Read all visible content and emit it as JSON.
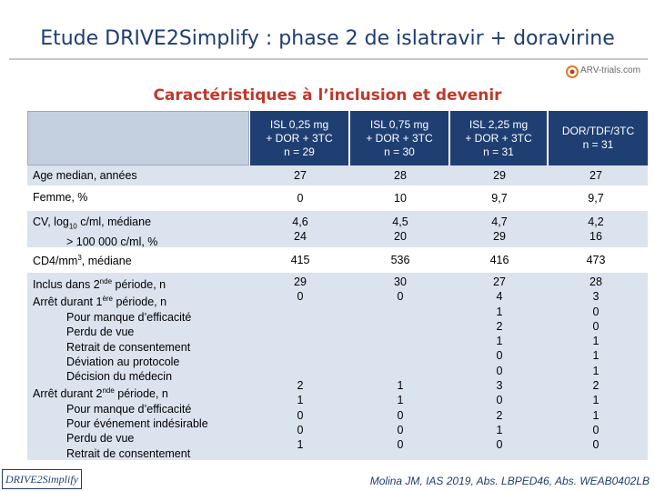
{
  "title": "Etude DRIVE2Simplify : phase 2 de islatravir + doravirine",
  "logo_text": "ARV-trials.com",
  "subtitle": "Caractéristiques à l’inclusion et devenir",
  "columns": [
    "ISL 0,25 mg\n+ DOR + 3TC\nn = 29",
    "ISL 0,75 mg\n+ DOR + 3TC\nn = 30",
    "ISL 2,25 mg\n+ DOR + 3TC\nn = 31",
    "DOR/TDF/3TC\nn = 31"
  ],
  "rows": {
    "age": {
      "label": "Age median, années",
      "values": [
        "27",
        "28",
        "29",
        "27"
      ]
    },
    "femme": {
      "label": "Femme, %",
      "values": [
        "0",
        "10",
        "9,7",
        "9,7"
      ]
    },
    "cv": {
      "label_a": "CV, log",
      "label_sub": "10",
      "label_b": " c/ml, médiane",
      "label_line2": "> 100 000 c/ml, %",
      "values": [
        "4,6\n24",
        "4,5\n20",
        "4,7\n29",
        "4,2\n16"
      ]
    },
    "cd4": {
      "label_a": "CD4/mm",
      "label_sup": "3",
      "label_b": ", médiane",
      "values": [
        "415",
        "536",
        "416",
        "473"
      ]
    },
    "disposition": {
      "labels": {
        "inclus_a": "Inclus dans 2",
        "inclus_sup": "nde",
        "inclus_b": " période, n",
        "arret1_a": "Arrêt durant 1",
        "arret1_sup": "ère",
        "arret1_b": " période, n",
        "p1_items": [
          "Pour manque d’efficacité",
          "Perdu de vue",
          "Retrait de consentement",
          "Déviation au protocole",
          "Décision du médecin"
        ],
        "arret2_a": "Arrêt durant 2",
        "arret2_sup": "nde",
        "arret2_b": " période, n",
        "p2_items": [
          "Pour manque d’efficacité",
          "Pour événement indésirable",
          "Perdu de vue",
          "Retrait de consentement"
        ]
      },
      "values": [
        "29\n0\n\n\n\n\n\n2\n1\n0\n0\n1",
        "30\n0\n\n\n\n\n\n1\n1\n0\n0\n0",
        "27\n4\n1\n2\n1\n0\n0\n3\n0\n2\n1\n0",
        "28\n3\n0\n0\n1\n1\n1\n2\n1\n1\n0\n0"
      ]
    }
  },
  "footer": {
    "badge": "DRIVE2Simplify",
    "citation": "Molina JM, IAS 2019, Abs. LBPED46, Abs. WEAB0402LB"
  },
  "colors": {
    "title": "#1f3d6e",
    "subtitle": "#c0392b",
    "header": "#1f3f73",
    "band": "#dbe3ef"
  }
}
